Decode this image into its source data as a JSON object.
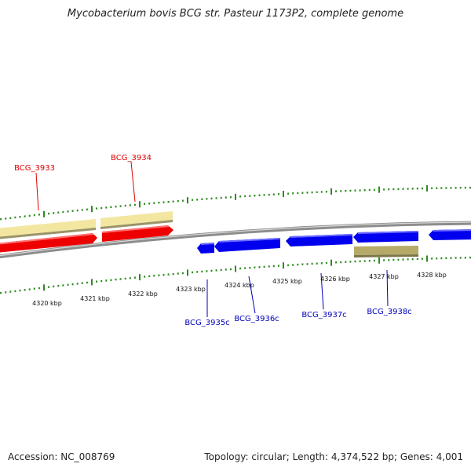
{
  "title": "Mycobacterium bovis BCG str. Pasteur 1173P2, complete genome",
  "footer": {
    "accession": "Accession: NC_008769",
    "summary": "Topology: circular; Length: 4,374,522 bp; Genes: 4,001"
  },
  "scale_labels": [
    "4320 kbp",
    "4321 kbp",
    "4322 kbp",
    "4323 kbp",
    "4324 kbp",
    "4325 kbp",
    "4326 kbp",
    "4327 kbp",
    "4328 kbp"
  ],
  "genes": [
    {
      "id": "BCG_3933",
      "strand": "forward",
      "color": "#dd0000"
    },
    {
      "id": "BCG_3934",
      "strand": "forward",
      "color": "#dd0000"
    },
    {
      "id": "BCG_3935c",
      "strand": "reverse",
      "color": "#0000bb"
    },
    {
      "id": "BCG_3936c",
      "strand": "reverse",
      "color": "#0000bb"
    },
    {
      "id": "BCG_3937c",
      "strand": "reverse",
      "color": "#0000bb"
    },
    {
      "id": "BCG_3938c",
      "strand": "reverse",
      "color": "#0000bb"
    }
  ],
  "colors": {
    "forward_gene": "#ff0000",
    "reverse_gene": "#0000ee",
    "forward_feature": "#f3e6a0",
    "reverse_feature": "#b5aa68",
    "backbone": "#888888",
    "tick": "#2e8b20"
  }
}
